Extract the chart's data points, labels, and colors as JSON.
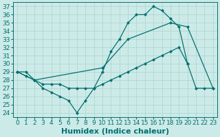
{
  "xlabel": "Humidex (Indice chaleur)",
  "background_color": "#cceae7",
  "grid_color": "#aad4d0",
  "line_color": "#007070",
  "xlim": [
    -0.5,
    23.5
  ],
  "ylim": [
    23.5,
    37.5
  ],
  "yticks": [
    24,
    25,
    26,
    27,
    28,
    29,
    30,
    31,
    32,
    33,
    34,
    35,
    36,
    37
  ],
  "xticks": [
    0,
    1,
    2,
    3,
    4,
    5,
    6,
    7,
    8,
    9,
    10,
    11,
    12,
    13,
    14,
    15,
    16,
    17,
    18,
    19,
    20,
    21,
    22,
    23
  ],
  "series1_x": [
    0,
    1,
    2,
    3,
    4,
    5,
    6,
    7,
    8,
    9,
    10,
    11,
    12,
    13,
    14,
    15,
    16,
    17,
    18,
    19,
    20
  ],
  "series1_y": [
    29,
    29,
    28,
    27,
    26.5,
    26,
    25.5,
    24,
    25.5,
    27,
    29,
    31.5,
    33,
    35,
    36,
    36,
    37,
    36.5,
    35.5,
    34.5,
    30
  ],
  "series2_x": [
    0,
    2,
    10,
    13,
    18,
    20,
    23
  ],
  "series2_y": [
    29,
    28,
    29.5,
    33,
    35,
    34.5,
    27
  ],
  "series3_x": [
    0,
    1,
    2,
    3,
    4,
    5,
    6,
    7,
    8,
    9,
    10,
    11,
    12,
    13,
    14,
    15,
    16,
    17,
    18,
    19,
    20,
    21,
    22,
    23
  ],
  "series3_y": [
    29,
    28.5,
    28,
    27.5,
    27.5,
    27.5,
    27,
    27,
    27,
    27,
    27.5,
    28,
    28.5,
    29,
    29.5,
    30,
    30.5,
    31,
    31.5,
    32,
    30,
    27,
    27,
    27
  ],
  "xlabel_fontsize": 8,
  "tick_fontsize": 6.5,
  "marker_size": 2.5
}
